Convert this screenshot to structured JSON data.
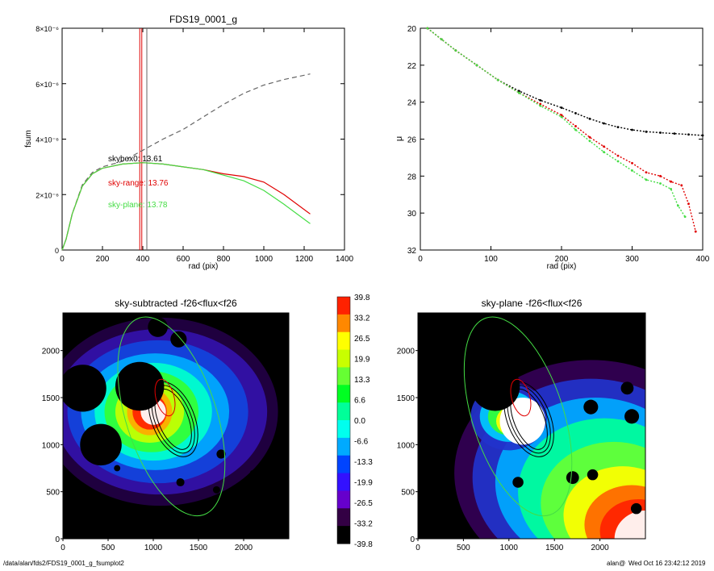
{
  "footer": {
    "path": "/data/alan/fds2/FDS19_0001_g_fsumplot2",
    "user": "alan@",
    "timestamp": "Wed Oct 16 23:42:12 2019"
  },
  "colors": {
    "black": "#000000",
    "red": "#e00000",
    "green": "#44dd44",
    "gray": "#666666"
  },
  "chart_data": [
    {
      "type": "line",
      "title": "FDS19_0001_g",
      "xlabel": "rad (pix)",
      "ylabel": "fsum",
      "xlim": [
        0,
        1400
      ],
      "ylim": [
        0,
        8e-06
      ],
      "x_ticks": [
        "0",
        "200",
        "400",
        "600",
        "800",
        "1000",
        "1200",
        "1400"
      ],
      "y_ticks": [
        {
          "value": 0,
          "label": "0"
        },
        {
          "value": 2e-06,
          "label": "2×10⁻⁶"
        },
        {
          "value": 4e-06,
          "label": "4×10⁻⁶"
        },
        {
          "value": 6e-06,
          "label": "6×10⁻⁶"
        },
        {
          "value": 8e-06,
          "label": "8×10⁻⁶"
        }
      ],
      "annotations": [
        {
          "text": "skybox0: 13.61",
          "color": "#000000"
        },
        {
          "text": "sky-range: 13.76",
          "color": "#e00000"
        },
        {
          "text": "sky-plane: 13.78",
          "color": "#44dd44"
        }
      ],
      "vlines": [
        {
          "x": 385,
          "color": "#e00000"
        },
        {
          "x": 395,
          "color": "#e00000"
        },
        {
          "x": 420,
          "color": "#666666"
        }
      ],
      "series": [
        {
          "color": "#666666",
          "dashed": true,
          "x": [
            0,
            20,
            50,
            100,
            150,
            200,
            250,
            300,
            400,
            500,
            600,
            700,
            800,
            900,
            1000,
            1100,
            1230
          ],
          "y": [
            0,
            4e-07,
            1.3e-06,
            2.35e-06,
            2.8e-06,
            3e-06,
            3.1e-06,
            3.2e-06,
            3.6e-06,
            4e-06,
            4.35e-06,
            4.8e-06,
            5.25e-06,
            5.65e-06,
            5.95e-06,
            6.15e-06,
            6.35e-06
          ]
        },
        {
          "color": "#e00000",
          "dashed": false,
          "x": [
            0,
            20,
            50,
            100,
            150,
            200,
            300,
            400,
            500,
            600,
            700,
            800,
            900,
            1000,
            1100,
            1230
          ],
          "y": [
            0,
            4e-07,
            1.3e-06,
            2.3e-06,
            2.75e-06,
            2.95e-06,
            3.1e-06,
            3.15e-06,
            3.1e-06,
            3e-06,
            2.9e-06,
            2.75e-06,
            2.65e-06,
            2.45e-06,
            2e-06,
            1.3e-06
          ]
        },
        {
          "color": "#44dd44",
          "dashed": false,
          "x": [
            0,
            20,
            50,
            100,
            150,
            200,
            300,
            400,
            500,
            600,
            700,
            800,
            900,
            1000,
            1100,
            1230
          ],
          "y": [
            0,
            4e-07,
            1.3e-06,
            2.3e-06,
            2.75e-06,
            2.95e-06,
            3.1e-06,
            3.15e-06,
            3.1e-06,
            3e-06,
            2.9e-06,
            2.7e-06,
            2.5e-06,
            2.15e-06,
            1.65e-06,
            9.5e-07
          ]
        }
      ]
    },
    {
      "type": "scatter",
      "title": "",
      "xlabel": "rad (pix)",
      "ylabel": "μ",
      "xlim": [
        0,
        400
      ],
      "ylim": [
        32,
        20
      ],
      "x_ticks": [
        "0",
        "100",
        "200",
        "300",
        "400"
      ],
      "y_ticks": [
        "20",
        "22",
        "24",
        "26",
        "28",
        "30",
        "32"
      ],
      "series": [
        {
          "color": "#000000",
          "x": [
            10,
            30,
            50,
            80,
            110,
            140,
            170,
            200,
            220,
            240,
            260,
            280,
            300,
            320,
            340,
            360,
            380,
            400
          ],
          "y": [
            20.0,
            20.6,
            21.2,
            22.0,
            22.8,
            23.4,
            23.9,
            24.3,
            24.6,
            24.9,
            25.15,
            25.35,
            25.5,
            25.6,
            25.65,
            25.7,
            25.75,
            25.8
          ]
        },
        {
          "color": "#e00000",
          "x": [
            10,
            30,
            50,
            80,
            110,
            140,
            170,
            200,
            220,
            240,
            260,
            280,
            300,
            320,
            340,
            355,
            370,
            380,
            390
          ],
          "y": [
            20.0,
            20.6,
            21.2,
            22.0,
            22.8,
            23.5,
            24.1,
            24.7,
            25.3,
            25.9,
            26.4,
            26.9,
            27.3,
            27.8,
            28.0,
            28.3,
            28.5,
            29.5,
            31.0
          ]
        },
        {
          "color": "#44dd44",
          "x": [
            10,
            30,
            50,
            80,
            110,
            140,
            170,
            200,
            220,
            240,
            260,
            280,
            300,
            320,
            340,
            355,
            365,
            375
          ],
          "y": [
            20.0,
            20.6,
            21.2,
            22.0,
            22.8,
            23.5,
            24.2,
            24.8,
            25.5,
            26.1,
            26.7,
            27.2,
            27.7,
            28.2,
            28.4,
            28.7,
            29.6,
            30.2
          ]
        }
      ]
    },
    {
      "type": "heatmap",
      "title": "sky-subtracted -f26<flux<f26",
      "xlim": [
        0,
        2500
      ],
      "ylim": [
        0,
        2400
      ],
      "x_ticks": [
        "0",
        "500",
        "1000",
        "1500",
        "2000"
      ],
      "y_ticks": [
        "0",
        "500",
        "1000",
        "1500",
        "2000"
      ]
    },
    {
      "type": "heatmap",
      "title": "sky-plane -f26<flux<f26",
      "xlim": [
        0,
        2500
      ],
      "ylim": [
        0,
        2400
      ],
      "x_ticks": [
        "0",
        "500",
        "1000",
        "1500",
        "2000"
      ],
      "y_ticks": [
        "0",
        "500",
        "1000",
        "1500",
        "2000"
      ]
    }
  ],
  "colorbar": {
    "labels": [
      "39.8",
      "33.2",
      "26.5",
      "19.9",
      "13.3",
      "6.6",
      "0.0",
      "-6.6",
      "-13.3",
      "-19.9",
      "-26.5",
      "-33.2",
      "-39.8"
    ],
    "colors": [
      "#ff2200",
      "#ff8800",
      "#ffff00",
      "#c8ff00",
      "#66ff33",
      "#00ff22",
      "#00ff99",
      "#00ffee",
      "#00aaff",
      "#0044ff",
      "#3311ff",
      "#6600cc",
      "#330044",
      "#000000"
    ]
  }
}
